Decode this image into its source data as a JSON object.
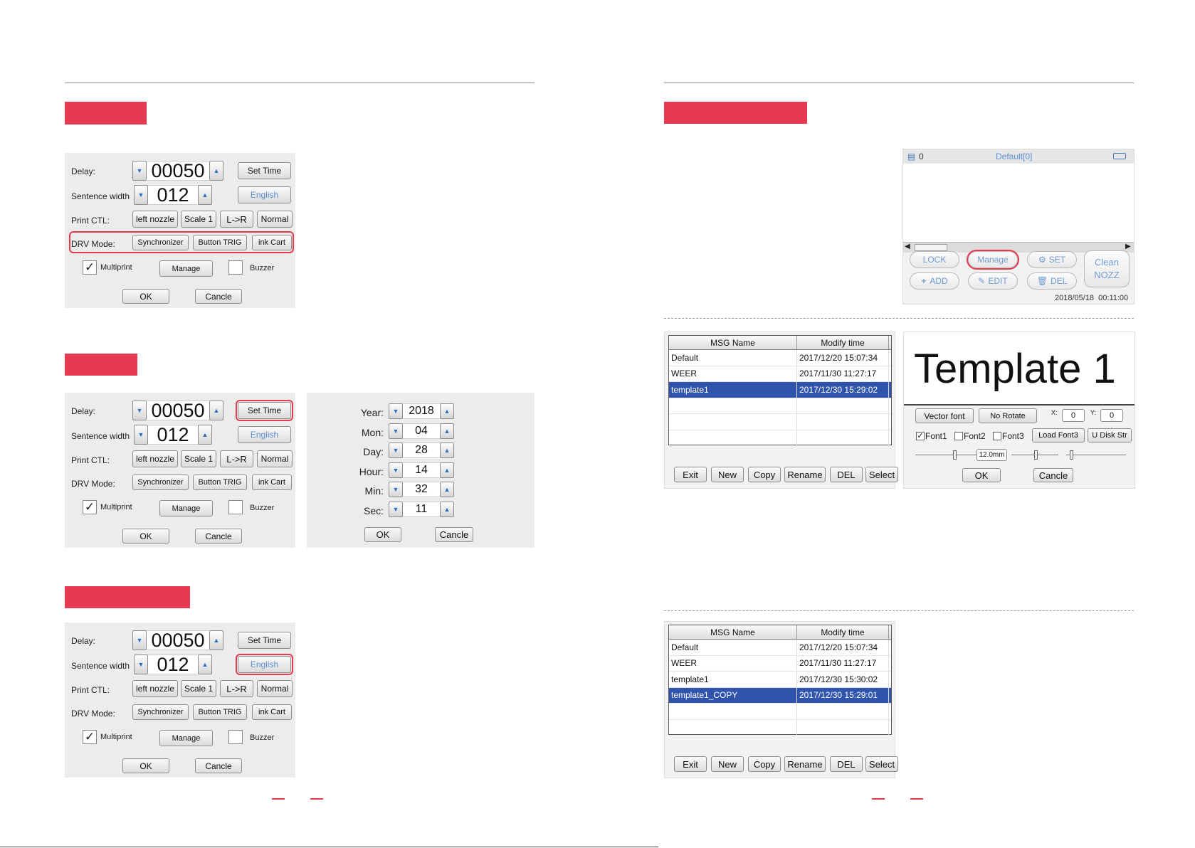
{
  "delay_screen": {
    "delay_label": "Delay:",
    "delay_value": "00050",
    "set_time": "Set Time",
    "sentence_width_label": "Sentence width",
    "sentence_width_value": "012",
    "english": "English",
    "print_ctl_label": "Print CTL:",
    "left_nozzle": "left nozzle",
    "scale": "Scale 1",
    "direction": "L->R",
    "normal": "Normal",
    "drv_mode_label": "DRV Mode:",
    "synchronizer": "Synchronizer",
    "button_trig": "Button TRIG",
    "ink_cart": "ink Cart",
    "multiprint": "Multiprint",
    "multiprint_checked": true,
    "manage": "Manage",
    "buzzer": "Buzzer",
    "buzzer_checked": false,
    "ok": "OK",
    "cancel": "Cancle"
  },
  "time_dialog": {
    "fields": [
      {
        "label": "Year:",
        "value": "2018"
      },
      {
        "label": "Mon:",
        "value": "04"
      },
      {
        "label": "Day:",
        "value": "28"
      },
      {
        "label": "Hour:",
        "value": "14"
      },
      {
        "label": "Min:",
        "value": "32"
      },
      {
        "label": "Sec:",
        "value": "11"
      }
    ],
    "ok": "OK",
    "cancel": "Cancle"
  },
  "main_screen": {
    "printer_count": "0",
    "title": "Default[0]",
    "lock": "LOCK",
    "manage": "Manage",
    "set": "SET",
    "add": "ADD",
    "edit": "EDIT",
    "del": "DEL",
    "clean_line1": "Clean",
    "clean_line2": "NOZZ",
    "datetime": "2018/05/18  00:11:00"
  },
  "msg_table_1": {
    "headers": [
      "MSG Name",
      "Modify time"
    ],
    "rows": [
      {
        "name": "Default",
        "time": "2017/12/20 15:07:34",
        "selected": false
      },
      {
        "name": "WEER",
        "time": "2017/11/30 11:27:17",
        "selected": false
      },
      {
        "name": "template1",
        "time": "2017/12/30 15:29:02",
        "selected": true
      },
      {
        "name": "",
        "time": "",
        "selected": false
      },
      {
        "name": "",
        "time": "",
        "selected": false
      },
      {
        "name": "",
        "time": "",
        "selected": false
      }
    ],
    "buttons": [
      "Exit",
      "New",
      "Copy",
      "Rename",
      "DEL",
      "Select"
    ]
  },
  "msg_table_2": {
    "headers": [
      "MSG Name",
      "Modify time"
    ],
    "rows": [
      {
        "name": "Default",
        "time": "2017/12/20 15:07:34",
        "selected": false
      },
      {
        "name": "WEER",
        "time": "2017/11/30 11:27:17",
        "selected": false
      },
      {
        "name": "template1",
        "time": "2017/12/30 15:30:02",
        "selected": false
      },
      {
        "name": "template1_COPY",
        "time": "2017/12/30 15:29:01",
        "selected": true
      },
      {
        "name": "",
        "time": "",
        "selected": false
      },
      {
        "name": "",
        "time": "",
        "selected": false
      }
    ],
    "buttons": [
      "Exit",
      "New",
      "Copy",
      "Rename",
      "DEL",
      "Select"
    ]
  },
  "template_editor": {
    "preview_text": "Template 1",
    "vector_font": "Vector font",
    "no_rotate": "No Rotate",
    "x_label": "X:",
    "x_value": "0",
    "y_label": "Y:",
    "y_value": "0",
    "font1": "Font1",
    "font2": "Font2",
    "font3": "Font3",
    "load_font3": "Load Font3",
    "u_disk": "U Disk Str",
    "size": "12.0mm",
    "ok": "OK",
    "cancel": "Cancle"
  },
  "colors": {
    "accent": "#e53a4f",
    "selection": "#3054ab",
    "panel": "#ececec"
  }
}
